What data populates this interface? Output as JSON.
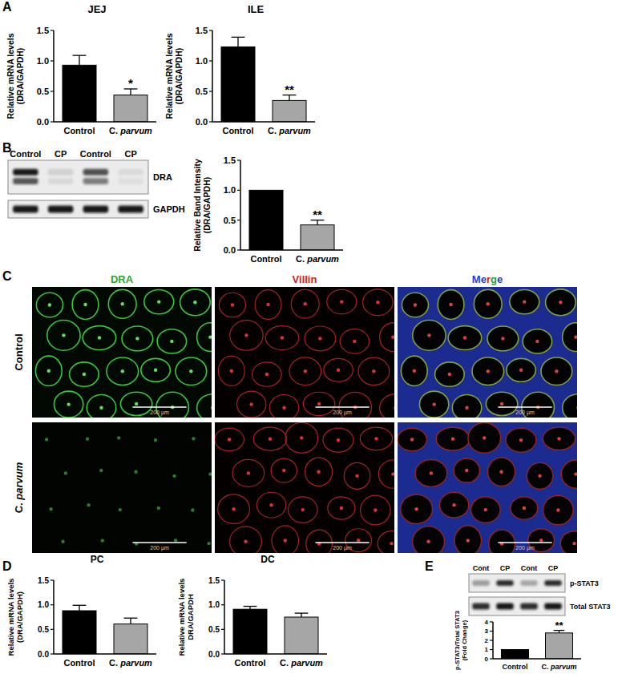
{
  "chart_data": [
    {
      "type": "bar",
      "title": "JEJ",
      "y_label": "Relative mRNA levels\n(DRA/GAPDH)",
      "categories": [
        "Control",
        "C. parvum"
      ],
      "values": [
        0.93,
        0.44
      ],
      "errors": [
        0.16,
        0.1
      ],
      "significance": [
        null,
        "*"
      ],
      "colors": [
        "#000000",
        "#a6a6a6"
      ],
      "ylim": [
        0,
        1.5
      ],
      "yticks": [
        {
          "value": 0,
          "label": "0.0"
        },
        0.5,
        {
          "value": 1,
          "label": "1.0"
        },
        1.5
      ],
      "grid": false
    },
    {
      "type": "bar",
      "title": "ILE",
      "y_label": "Relative mRNA levels\n(DRA/GAPDH)",
      "categories": [
        "Control",
        "C. parvum"
      ],
      "values": [
        1.23,
        0.35
      ],
      "errors": [
        0.16,
        0.09
      ],
      "significance": [
        null,
        "**"
      ],
      "colors": [
        "#000000",
        "#a6a6a6"
      ],
      "ylim": [
        0,
        1.5
      ],
      "yticks": [
        {
          "value": 0,
          "label": "0.0"
        },
        0.5,
        {
          "value": 1,
          "label": "1.0"
        },
        1.5
      ],
      "grid": false
    },
    {
      "type": "bar",
      "y_label": "Relative Band Intensity\n(DRA/GAPDH)",
      "categories": [
        "Control",
        "C. parvum"
      ],
      "values": [
        1.0,
        0.42
      ],
      "errors": [
        null,
        0.08
      ],
      "significance": [
        null,
        "**"
      ],
      "colors": [
        "#000000",
        "#a6a6a6"
      ],
      "ylim": [
        0,
        1.5
      ],
      "yticks": [
        {
          "value": 0,
          "label": "0.0"
        },
        0.5,
        {
          "value": 1,
          "label": "1.0"
        },
        1.5
      ],
      "grid": false
    },
    {
      "type": "bar",
      "title": "PC",
      "y_label": "Relative mRNA levels\n(DRA/GAPDH)",
      "categories": [
        "Control",
        "C. parvum"
      ],
      "values": [
        0.88,
        0.61
      ],
      "errors": [
        0.11,
        0.12
      ],
      "significance": [
        null,
        null
      ],
      "colors": [
        "#000000",
        "#a6a6a6"
      ],
      "ylim": [
        0,
        1.5
      ],
      "yticks": [
        {
          "value": 0,
          "label": "0.0"
        },
        0.5,
        {
          "value": 1,
          "label": "1.0"
        },
        1.5
      ],
      "grid": false
    },
    {
      "type": "bar",
      "title": "DC",
      "y_label": "Relative mRNA levels\nDRA/GAPDH",
      "categories": [
        "Control",
        "C. parvum"
      ],
      "values": [
        0.91,
        0.75
      ],
      "errors": [
        0.06,
        0.08
      ],
      "significance": [
        null,
        null
      ],
      "colors": [
        "#000000",
        "#a6a6a6"
      ],
      "ylim": [
        0,
        1.5
      ],
      "yticks": [
        {
          "value": 0,
          "label": "0.0"
        },
        0.5,
        {
          "value": 1,
          "label": "1.0"
        },
        1.5
      ],
      "grid": false
    },
    {
      "type": "bar",
      "y_label": "p-STAT3/Total STAT3\n(Fold Change)",
      "categories": [
        "Control",
        "C. parvum"
      ],
      "values": [
        1.0,
        2.8
      ],
      "errors": [
        null,
        0.28
      ],
      "significance": [
        null,
        "**"
      ],
      "colors": [
        "#000000",
        "#a6a6a6"
      ],
      "ylim": [
        0,
        4
      ],
      "yticks": [
        0,
        1,
        2,
        3,
        4
      ],
      "grid": false
    }
  ],
  "figure": {
    "panel_labels": [
      "A",
      "B",
      "C",
      "D",
      "E"
    ],
    "blot_B": {
      "lanes": [
        "Control",
        "CP",
        "Control",
        "CP"
      ],
      "bands": [
        "DRA",
        "GAPDH"
      ]
    },
    "micrograph_C": {
      "columns": [
        "DRA",
        "Villin",
        "Merge"
      ],
      "rows": [
        "Control",
        "C. parvum"
      ],
      "scale_bar": "200 µm"
    },
    "blot_E": {
      "lanes": [
        "Cont",
        "CP",
        "Cont",
        "CP"
      ],
      "bands": [
        "p-STAT3",
        "Total STAT3"
      ]
    }
  }
}
